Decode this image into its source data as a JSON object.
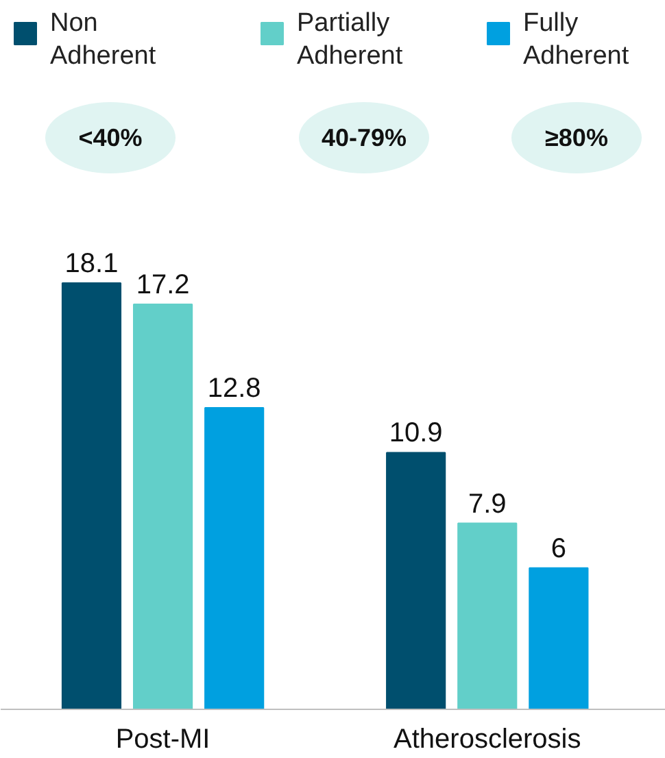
{
  "chart_data": {
    "type": "bar",
    "categories": [
      "Post-MI",
      "Atherosclerosis"
    ],
    "series": [
      {
        "name": "Non Adherent",
        "color": "#004f6e",
        "values": [
          18.1,
          10.9
        ]
      },
      {
        "name": "Partially Adherent",
        "color": "#62cfc9",
        "values": [
          17.2,
          7.9
        ]
      },
      {
        "name": "Fully Adherent",
        "color": "#00a0e0",
        "values": [
          12.8,
          6
        ]
      }
    ],
    "annotations": [
      "<40%",
      "40-79%",
      "≥80%"
    ],
    "data_labels": true,
    "legend": "top",
    "grid": false
  }
}
